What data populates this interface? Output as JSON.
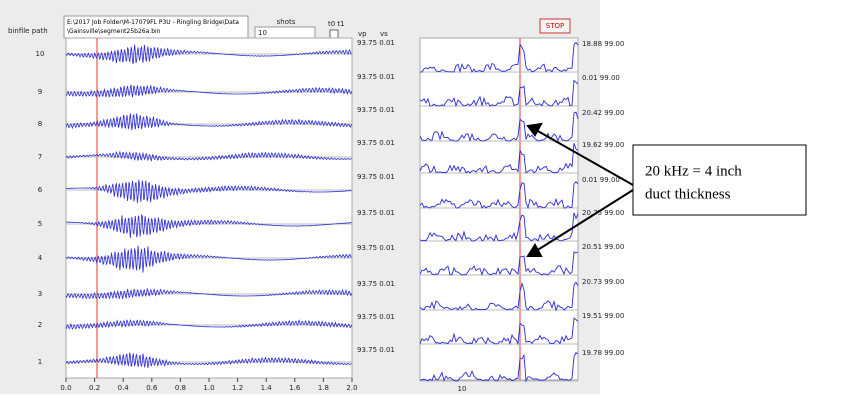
{
  "header": {
    "path_label": "binfile path",
    "path_value": "E:\\2017 Job Folder\\M-17079FL P3U - Ringling Bridge\\Data\\Gainsville\\segment25b26a.bin",
    "shots_label": "shots",
    "shots_value": "10",
    "t_label": "t0 t1",
    "stop": "STOP"
  },
  "left_plot": {
    "row_labels": [
      "10",
      "9",
      "8",
      "7",
      "6",
      "5",
      "4",
      "3",
      "2",
      "1"
    ],
    "xticks": [
      "0.0",
      "0.2",
      "0.4",
      "0.6",
      "0.8",
      "1.0",
      "1.2",
      "1.4",
      "1.6",
      "1.8",
      "2.0"
    ]
  },
  "vp_label": "vp",
  "vs_label": "vs",
  "left_values": [
    "93.75 0.01",
    "93.75 0.01",
    "93.75 0.01",
    "93.75 0.01",
    "93.75 0.01",
    "93.75 0.01",
    "93.75 0.01",
    "93.75 0.01",
    "93.75 0.01",
    "93.75 0.01"
  ],
  "right_values": [
    "18.88 99.00",
    "0.01 99.00",
    "20.42 99.00",
    "19.62 99.00",
    "0.01 99.00",
    "20.75 99.00",
    "20.51 99.00",
    "20.73 99.00",
    "19.51 99.00",
    "19.78 99.00"
  ],
  "right_plot": {
    "xtick": "10"
  },
  "annotation": {
    "line1": "20 kHz = 4 inch",
    "line2": "duct thickness"
  }
}
